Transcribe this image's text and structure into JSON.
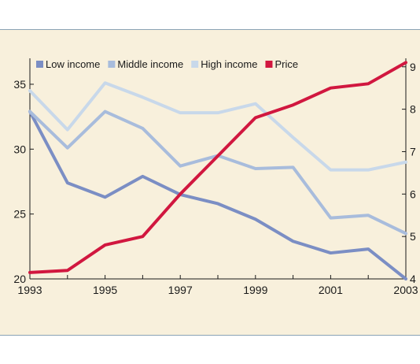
{
  "chart_data": {
    "type": "line",
    "x": [
      1993,
      1994,
      1995,
      1996,
      1997,
      1998,
      1999,
      2000,
      2001,
      2002,
      2003
    ],
    "series": [
      {
        "name": "Low income",
        "axis": "left",
        "color": "#7b8ec4",
        "values": [
          32.9,
          27.4,
          26.3,
          27.9,
          26.5,
          25.8,
          24.6,
          22.9,
          22.0,
          22.3,
          20.0
        ]
      },
      {
        "name": "Middle income",
        "axis": "left",
        "color": "#a8bcdc",
        "values": [
          32.9,
          30.1,
          32.9,
          31.6,
          28.7,
          29.5,
          28.5,
          28.6,
          24.7,
          24.9,
          23.5
        ]
      },
      {
        "name": "High income",
        "axis": "left",
        "color": "#c8d8ea",
        "values": [
          34.5,
          31.5,
          35.1,
          34.0,
          32.8,
          32.8,
          33.5,
          30.9,
          28.4,
          28.4,
          29.0
        ]
      },
      {
        "name": "Price",
        "axis": "right",
        "color": "#d1173f",
        "values": [
          4.15,
          4.2,
          4.8,
          5.0,
          6.0,
          6.9,
          7.8,
          8.1,
          8.5,
          8.6,
          9.1
        ]
      }
    ],
    "left_axis": {
      "ylim": [
        20,
        37
      ],
      "ticks": [
        20,
        25,
        30,
        35
      ]
    },
    "right_axis": {
      "ylim": [
        4,
        9.2
      ],
      "ticks": [
        4,
        5,
        6,
        7,
        8,
        9
      ]
    },
    "x_ticks": [
      1993,
      1995,
      1997,
      1999,
      2001,
      2003
    ],
    "legend_placement": "top",
    "grid": false
  }
}
